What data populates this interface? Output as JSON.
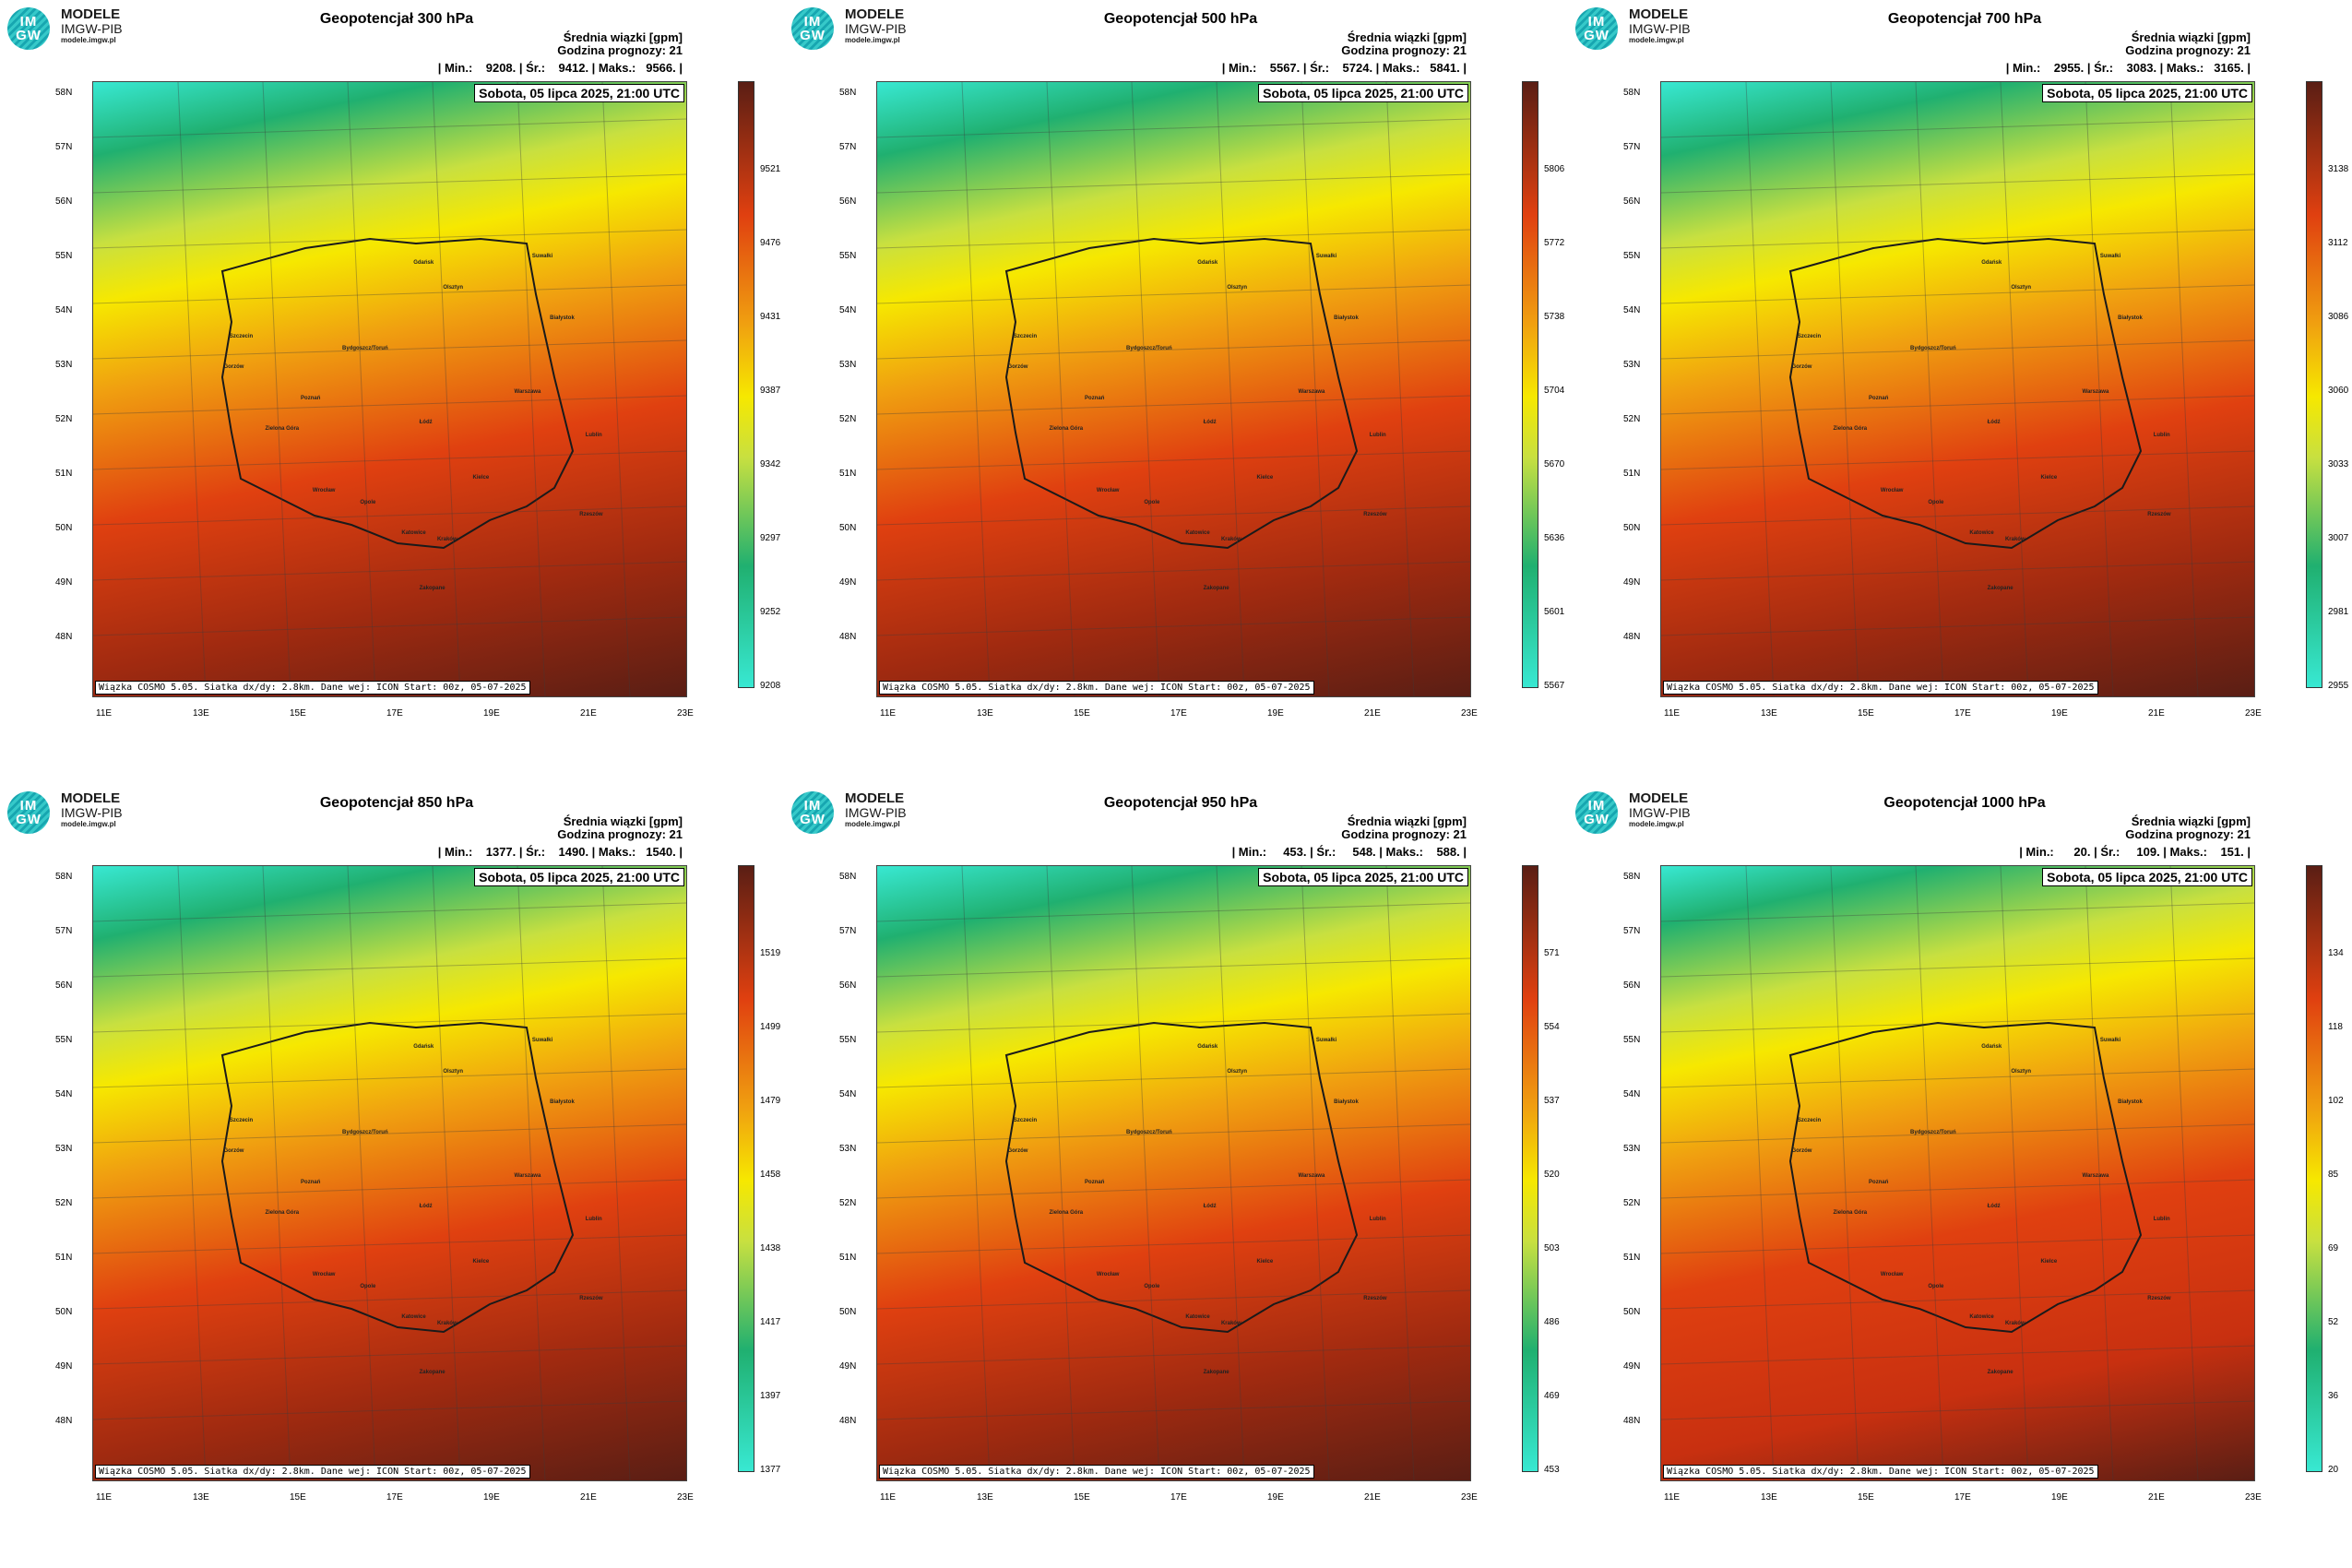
{
  "logo": {
    "circle_top": "IM",
    "circle_bottom": "GW",
    "line1": "MODELE",
    "line2": "IMGW-PIB",
    "line3": "modele.imgw.pl"
  },
  "info_lines": [
    "Średnia wiązki [gpm]",
    "Godzina prognozy: 21"
  ],
  "date": "Sobota, 05 lipca 2025, 21:00 UTC",
  "footer": "Wiązka COSMO 5.05. Siatka dx/dy: 2.8km. Dane wej: ICON Start: 00z, 05-07-2025",
  "lat_labels": [
    "58N",
    "57N",
    "56N",
    "55N",
    "54N",
    "53N",
    "52N",
    "51N",
    "50N",
    "49N",
    "48N"
  ],
  "lon_labels": [
    "11E",
    "13E",
    "15E",
    "17E",
    "19E",
    "21E",
    "23E"
  ],
  "cities": [
    "Gdańsk",
    "Suwałki",
    "Olsztyn",
    "Białystok",
    "Szczecin",
    "Bydgoszcz/Toruń",
    "Gorzów",
    "Warszawa",
    "Poznań",
    "Łódź",
    "Zielona Góra",
    "Lublin",
    "Wrocław",
    "Kielce",
    "Opole",
    "Rzeszów",
    "Katowice",
    "Kraków",
    "Zakopane"
  ],
  "colors": {
    "low": "#38e8d2",
    "mid1": "#20b070",
    "mid2": "#c8e040",
    "mid3": "#f6e800",
    "mid4": "#f0a010",
    "mid5": "#e04010",
    "high": "#5a1e14"
  },
  "panels": [
    {
      "title": "Geopotencjał 300 hPa",
      "stats": "| Min.:    9208. | Śr.:    9412. | Maks.:   9566. |",
      "colorbar": [
        "9521",
        "9476",
        "9431",
        "9387",
        "9342",
        "9297",
        "9252",
        "9208"
      ]
    },
    {
      "title": "Geopotencjał 500 hPa",
      "stats": "| Min.:    5567. | Śr.:    5724. | Maks.:   5841. |",
      "colorbar": [
        "5806",
        "5772",
        "5738",
        "5704",
        "5670",
        "5636",
        "5601",
        "5567"
      ]
    },
    {
      "title": "Geopotencjał 700 hPa",
      "stats": "| Min.:    2955. | Śr.:    3083. | Maks.:   3165. |",
      "colorbar": [
        "3138",
        "3112",
        "3086",
        "3060",
        "3033",
        "3007",
        "2981",
        "2955"
      ]
    },
    {
      "title": "Geopotencjał 850 hPa",
      "stats": "| Min.:    1377. | Śr.:    1490. | Maks.:   1540. |",
      "colorbar": [
        "1519",
        "1499",
        "1479",
        "1458",
        "1438",
        "1417",
        "1397",
        "1377"
      ]
    },
    {
      "title": "Geopotencjał 950 hPa",
      "stats": "| Min.:     453. | Śr.:     548. | Maks.:    588. |",
      "colorbar": [
        "571",
        "554",
        "537",
        "520",
        "503",
        "486",
        "469",
        "453"
      ]
    },
    {
      "title": "Geopotencjał 1000 hPa",
      "stats": "| Min.:      20. | Śr.:     109. | Maks.:    151. |",
      "colorbar": [
        "134",
        "118",
        "102",
        "85",
        "69",
        "52",
        "36",
        "20"
      ]
    }
  ]
}
